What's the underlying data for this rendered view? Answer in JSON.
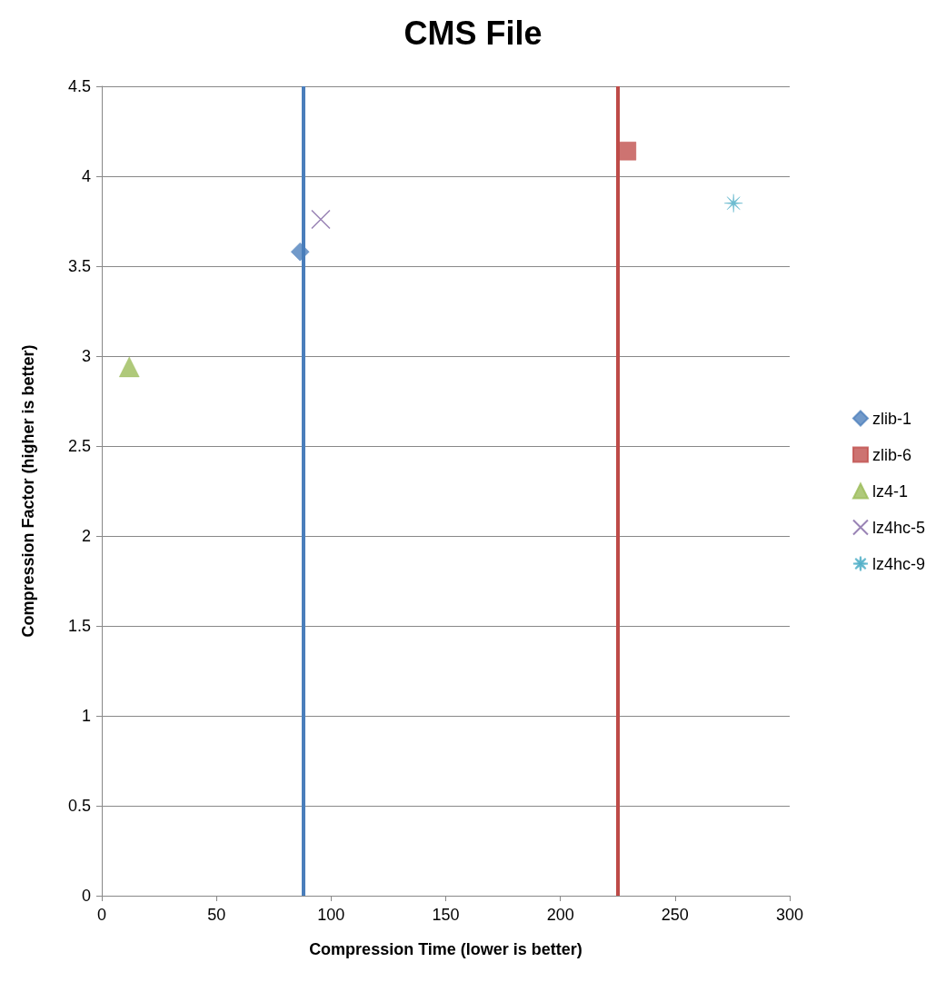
{
  "chart_data": {
    "type": "scatter",
    "title": "CMS File",
    "xlabel": "Compression Time (lower is better)",
    "ylabel": "Compression Factor (higher is better)",
    "series": [
      {
        "name": "zlib-1",
        "color": "#4f81bd",
        "marker": "diamond",
        "x": [
          86.5
        ],
        "values": [
          3.58
        ]
      },
      {
        "name": "zlib-6",
        "color": "#c0504d",
        "marker": "square",
        "x": [
          229
        ],
        "values": [
          4.14
        ]
      },
      {
        "name": "lz4-1",
        "color": "#9bbb59",
        "marker": "triangle",
        "x": [
          12
        ],
        "values": [
          2.94
        ]
      },
      {
        "name": "lz4hc-5",
        "color": "#8064a2",
        "marker": "cross",
        "x": [
          95.5
        ],
        "values": [
          3.76
        ]
      },
      {
        "name": "lz4hc-9",
        "color": "#4bacc6",
        "marker": "star",
        "x": [
          275.5
        ],
        "values": [
          3.85
        ]
      }
    ],
    "ref_lines": [
      {
        "axis": "x",
        "value": 88,
        "color": "#4a7ebb"
      },
      {
        "axis": "x",
        "value": 225,
        "color": "#be4b48"
      }
    ],
    "xlim": [
      0,
      300
    ],
    "xticks": [
      0,
      50,
      100,
      150,
      200,
      250,
      300
    ],
    "ylim": [
      0,
      4.5
    ],
    "yticks": [
      0,
      0.5,
      1,
      1.5,
      2,
      2.5,
      3,
      3.5,
      4,
      4.5
    ],
    "grid": "y",
    "legend": "right"
  }
}
